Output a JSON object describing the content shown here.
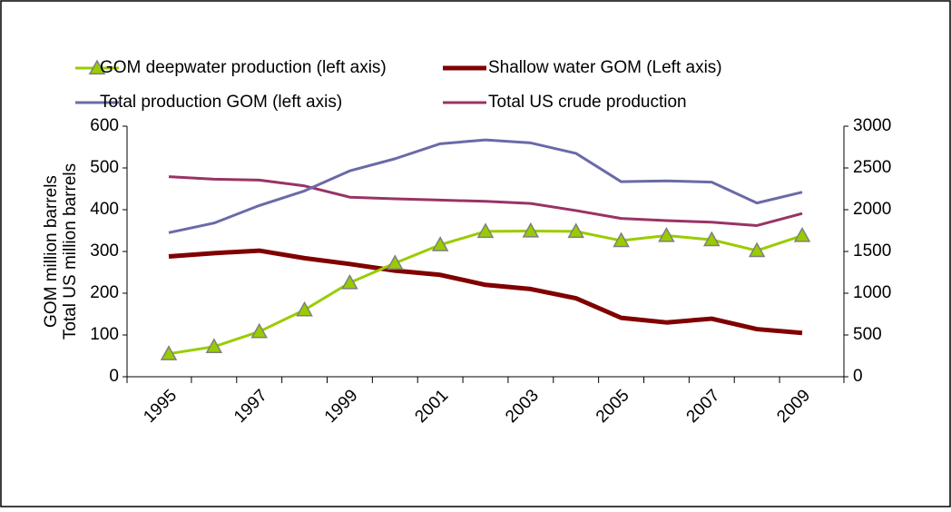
{
  "chart_data": {
    "type": "line",
    "y_label": [
      "GOM million barrels",
      "Total US million barrels"
    ],
    "categories": [
      "1995",
      null,
      "1997",
      null,
      "1999",
      null,
      "2001",
      null,
      "2003",
      null,
      "2005",
      null,
      "2007",
      null,
      "2009"
    ],
    "series": [
      {
        "name": "GOM deepwater production (left axis)",
        "color": "#99cc00",
        "marker": "triangle",
        "line_width": 3,
        "values": [
          55,
          72,
          108,
          160,
          225,
          272,
          316,
          348,
          349,
          348,
          326,
          338,
          328,
          302,
          338
        ]
      },
      {
        "name": "Shallow water GOM (Left axis)",
        "color": "#800000",
        "line_width": 5,
        "values": [
          288,
          296,
          302,
          284,
          270,
          254,
          244,
          220,
          210,
          188,
          141,
          130,
          139,
          114,
          105
        ]
      },
      {
        "name": "Total production GOM (left axis)",
        "color": "#6a6aa8",
        "line_width": 3,
        "values": [
          345,
          368,
          410,
          445,
          493,
          522,
          558,
          567,
          560,
          535,
          467,
          469,
          466,
          416,
          442
        ]
      },
      {
        "name": "Total US crude production",
        "color": "#993366",
        "axis": "y2",
        "line_width": 3,
        "values": [
          2395,
          2365,
          2355,
          2285,
          2150,
          2130,
          2115,
          2100,
          2075,
          1990,
          1895,
          1870,
          1850,
          1810,
          1955
        ]
      }
    ],
    "ylim": [
      0,
      600
    ],
    "yticks": [
      0,
      100,
      200,
      300,
      400,
      500,
      600
    ],
    "y2lim": [
      0,
      3000
    ],
    "y2ticks": [
      0,
      500,
      1000,
      1500,
      2000,
      2500,
      3000
    ],
    "legend": "top"
  }
}
